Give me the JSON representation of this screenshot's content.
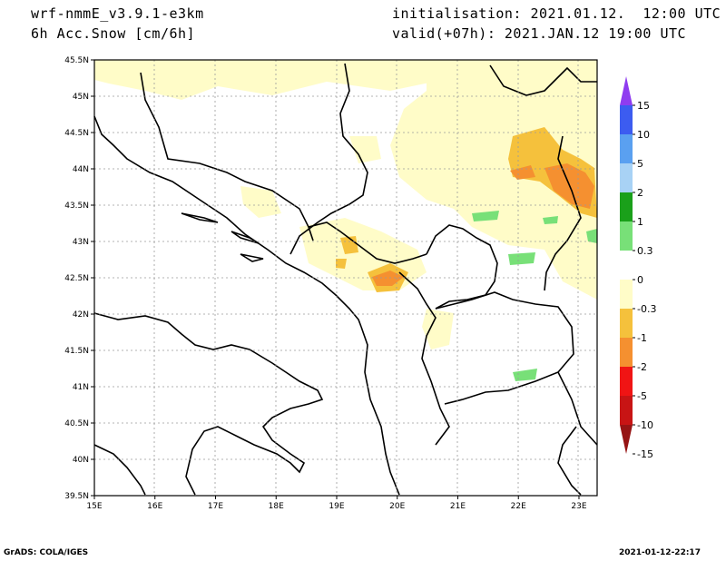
{
  "header": {
    "model": "wrf-nmmE_v3.9.1-e3km",
    "variable": "6h Acc.Snow [cm/6h]",
    "initialisation": "initialisation: 2021.01.12.  12:00 UTC",
    "valid": "valid(+07h): 2021.JAN.12 19:00 UTC"
  },
  "map": {
    "lon_range": [
      15,
      23.3
    ],
    "lat_range": [
      39.5,
      45.5
    ],
    "lat_labels": [
      "45.5N",
      "45N",
      "44.5N",
      "44N",
      "43.5N",
      "43N",
      "42.5N",
      "42N",
      "41.5N",
      "41N",
      "40.5N",
      "40N",
      "39.5N"
    ],
    "lon_labels": [
      "15E",
      "16E",
      "17E",
      "18E",
      "19E",
      "20E",
      "21E",
      "22E",
      "23E"
    ],
    "grid": "dotted"
  },
  "legend": {
    "labels": [
      "15",
      "10",
      "5",
      "2",
      "1",
      "0.3",
      "0",
      "-0.3",
      "-1",
      "-2",
      "-5",
      "-10",
      "-15"
    ],
    "colors": [
      "#8f3cf0",
      "#3c5cf0",
      "#5aa0f0",
      "#a8d2f5",
      "#1aa01a",
      "#78e078",
      "#ffffff",
      "#fffcc8",
      "#f5c13c",
      "#f59030",
      "#f01414",
      "#c81414",
      "#961414"
    ]
  },
  "footer": {
    "left": "GrADS: COLA/IGES",
    "right": "2021-01-12-22:17"
  }
}
